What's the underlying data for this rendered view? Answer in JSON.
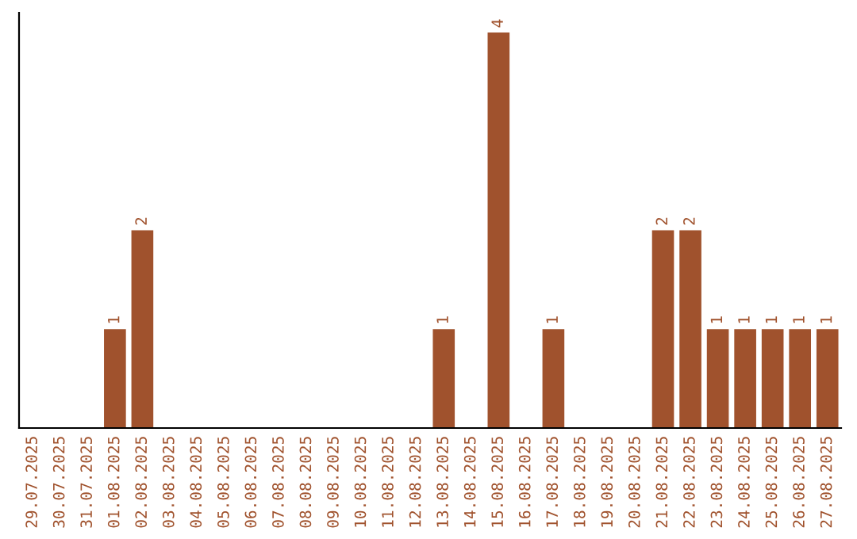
{
  "chart_data": {
    "type": "bar",
    "categories": [
      "29.07.2025",
      "30.07.2025",
      "31.07.2025",
      "01.08.2025",
      "02.08.2025",
      "03.08.2025",
      "04.08.2025",
      "05.08.2025",
      "06.08.2025",
      "07.08.2025",
      "08.08.2025",
      "09.08.2025",
      "10.08.2025",
      "11.08.2025",
      "12.08.2025",
      "13.08.2025",
      "14.08.2025",
      "15.08.2025",
      "16.08.2025",
      "17.08.2025",
      "18.08.2025",
      "19.08.2025",
      "20.08.2025",
      "21.08.2025",
      "22.08.2025",
      "23.08.2025",
      "24.08.2025",
      "25.08.2025",
      "26.08.2025",
      "27.08.2025"
    ],
    "values": [
      0,
      0,
      0,
      1,
      2,
      0,
      0,
      0,
      0,
      0,
      0,
      0,
      0,
      0,
      0,
      1,
      0,
      4,
      0,
      1,
      0,
      0,
      0,
      2,
      2,
      1,
      1,
      1,
      1,
      1
    ],
    "value_labels": [
      null,
      null,
      null,
      "1",
      "2",
      null,
      null,
      null,
      null,
      null,
      null,
      null,
      null,
      null,
      null,
      "1",
      null,
      "4",
      null,
      "1",
      null,
      null,
      null,
      "2",
      "2",
      "1",
      "1",
      "1",
      "1",
      "1"
    ],
    "color": "#a0522d",
    "grid": false,
    "legend": false,
    "tick_labels": "x"
  }
}
